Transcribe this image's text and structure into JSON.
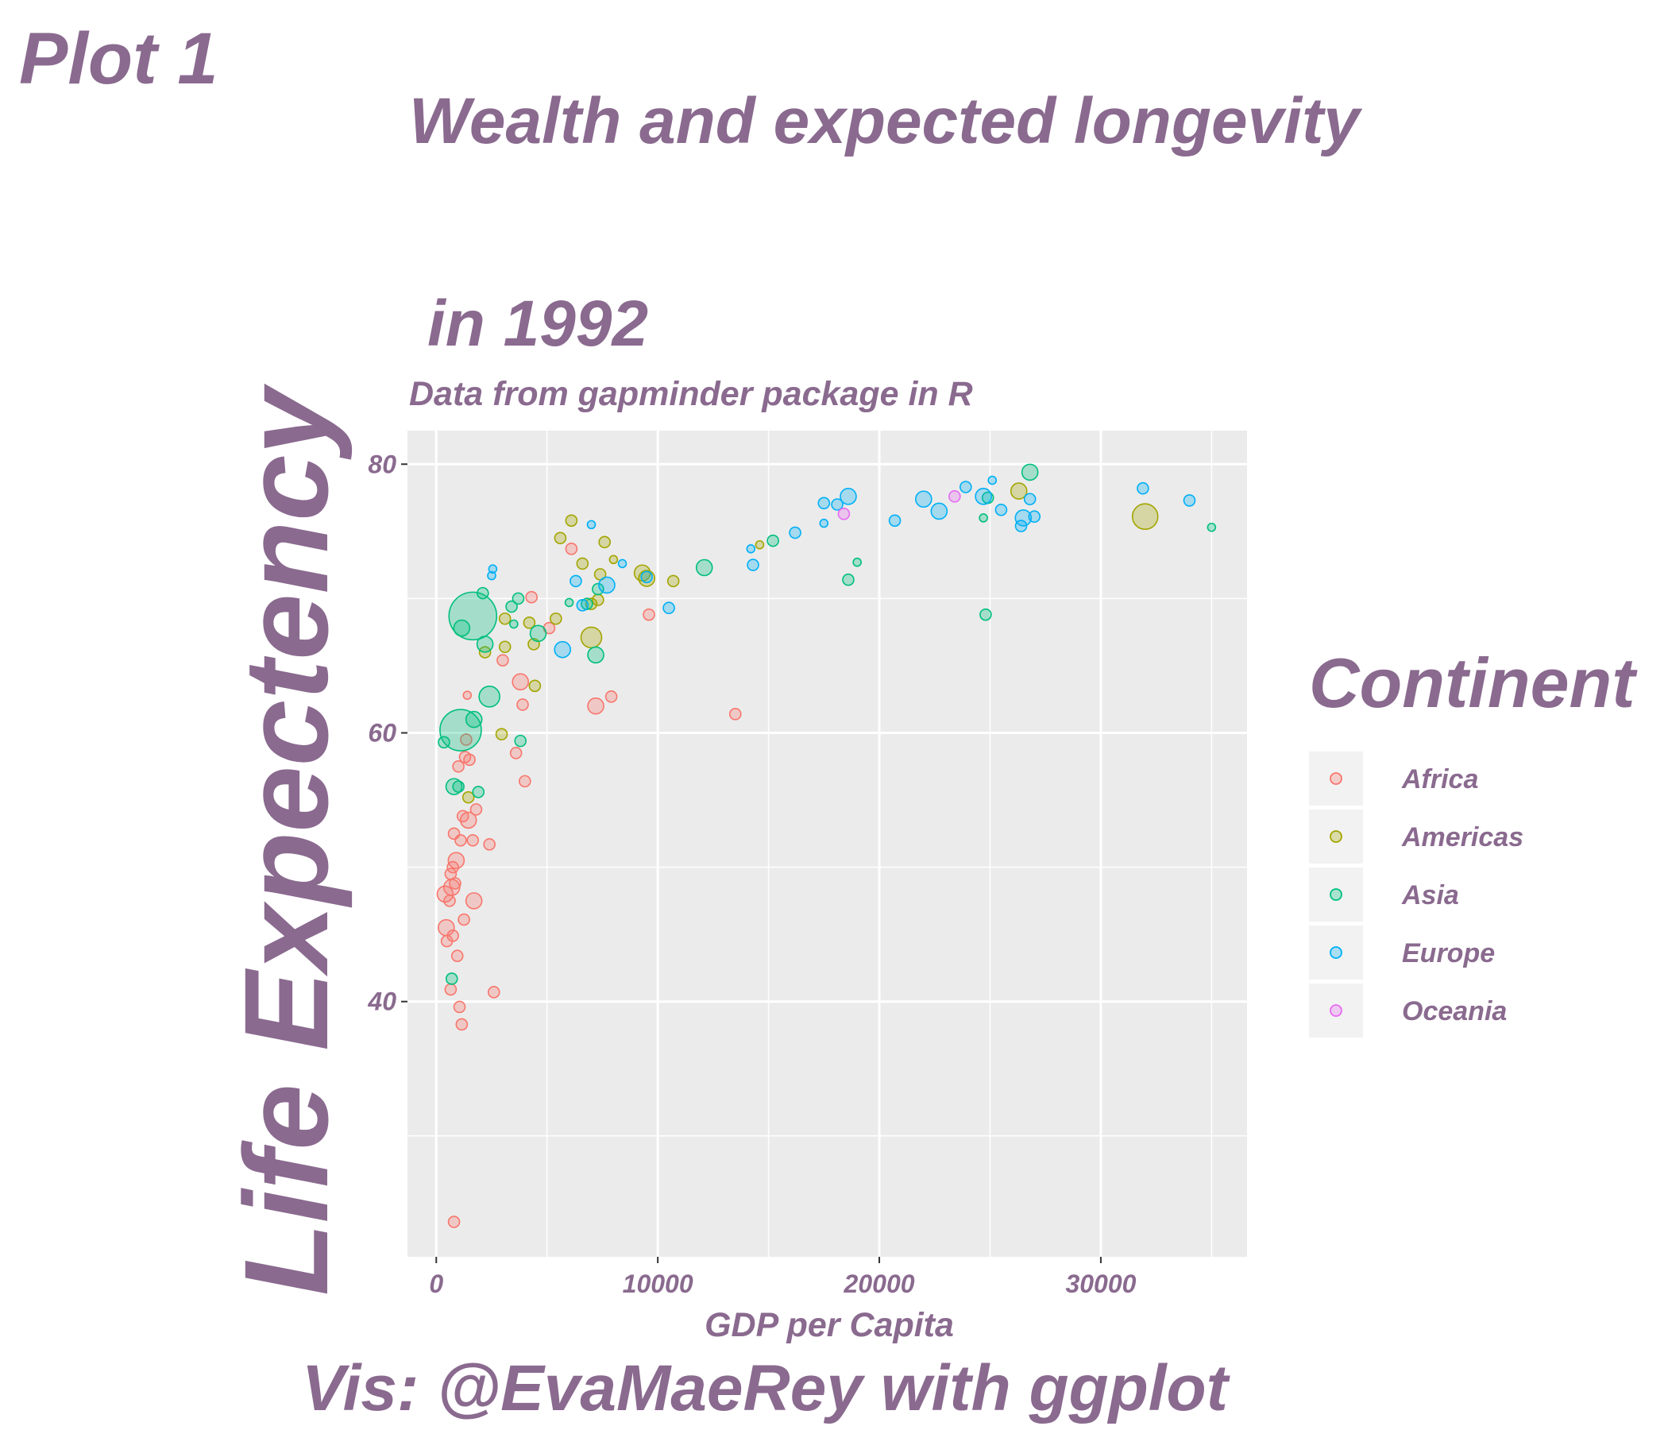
{
  "tag": "Plot 1",
  "caption": "Vis: @EvaMaeRey with ggplot",
  "colors": {
    "text": "#8a6a8f",
    "panel": "#ebebeb",
    "grid": "#ffffff",
    "legend_key": "#f2f2f2",
    "tick_text": "#8a6a8f"
  },
  "chart_data": {
    "type": "scatter",
    "title_lines": [
      "Wealth and expected longevity",
      "in 1992"
    ],
    "subtitle": "Data from gapminder package in R",
    "xlabel": "GDP per Capita",
    "ylabel": "Life Expectency",
    "xlim": [
      -1300,
      36600
    ],
    "ylim": [
      21,
      82.5
    ],
    "xticks": [
      0,
      10000,
      20000,
      30000
    ],
    "yticks": [
      40,
      60,
      80
    ],
    "grid": true,
    "legend": {
      "title": "Continent",
      "position": "right",
      "entries": [
        {
          "name": "Africa",
          "color": "#F8766D"
        },
        {
          "name": "Americas",
          "color": "#A3A500"
        },
        {
          "name": "Asia",
          "color": "#00BF7D"
        },
        {
          "name": "Europe",
          "color": "#00B0F6"
        },
        {
          "name": "Oceania",
          "color": "#E76BF3"
        }
      ]
    },
    "series": [
      {
        "name": "Africa",
        "color": "#F8766D",
        "points": [
          [
            400,
            48.0,
            3
          ],
          [
            450,
            45.5,
            3
          ],
          [
            480,
            44.5,
            2
          ],
          [
            600,
            47.5,
            2
          ],
          [
            650,
            49.5,
            2
          ],
          [
            700,
            48.5,
            3
          ],
          [
            750,
            50.0,
            2
          ],
          [
            800,
            52.5,
            2
          ],
          [
            850,
            48.8,
            2
          ],
          [
            900,
            50.5,
            3
          ],
          [
            950,
            43.4,
            2
          ],
          [
            1000,
            57.5,
            2
          ],
          [
            1050,
            39.6,
            2
          ],
          [
            1100,
            52.0,
            2
          ],
          [
            1150,
            38.3,
            2
          ],
          [
            1200,
            53.8,
            2
          ],
          [
            1250,
            46.1,
            2
          ],
          [
            1300,
            58.2,
            2
          ],
          [
            1350,
            59.5,
            2
          ],
          [
            1400,
            62.8,
            1
          ],
          [
            1450,
            53.5,
            3
          ],
          [
            1500,
            58.0,
            2
          ],
          [
            1650,
            52.0,
            2
          ],
          [
            1700,
            47.5,
            3
          ],
          [
            1800,
            54.3,
            2
          ],
          [
            2400,
            51.7,
            2
          ],
          [
            2600,
            40.7,
            2
          ],
          [
            3000,
            65.4,
            2
          ],
          [
            3600,
            58.5,
            2
          ],
          [
            3800,
            63.8,
            3
          ],
          [
            3900,
            62.1,
            2
          ],
          [
            4000,
            56.4,
            2
          ],
          [
            4300,
            70.1,
            2
          ],
          [
            5100,
            67.8,
            2
          ],
          [
            6100,
            73.7,
            2
          ],
          [
            7200,
            62.0,
            3
          ],
          [
            7900,
            62.7,
            2
          ],
          [
            9600,
            68.8,
            2
          ],
          [
            13500,
            61.4,
            2
          ],
          [
            800,
            23.6,
            2
          ],
          [
            650,
            40.9,
            2
          ],
          [
            750,
            44.9,
            2
          ]
        ]
      },
      {
        "name": "Americas",
        "color": "#A3A500",
        "points": [
          [
            1450,
            55.2,
            2
          ],
          [
            2200,
            66.0,
            2
          ],
          [
            2950,
            59.9,
            2
          ],
          [
            3100,
            68.5,
            2
          ],
          [
            3100,
            66.4,
            2
          ],
          [
            4200,
            68.2,
            2
          ],
          [
            4400,
            66.6,
            2
          ],
          [
            4450,
            63.5,
            2
          ],
          [
            5400,
            68.5,
            2
          ],
          [
            5600,
            74.5,
            2
          ],
          [
            6100,
            75.8,
            2
          ],
          [
            6600,
            72.6,
            2
          ],
          [
            7000,
            67.1,
            4
          ],
          [
            7000,
            69.6,
            2
          ],
          [
            7300,
            69.9,
            2
          ],
          [
            7400,
            71.8,
            2
          ],
          [
            7600,
            74.2,
            2
          ],
          [
            8000,
            72.9,
            1
          ],
          [
            9300,
            71.9,
            3
          ],
          [
            9500,
            71.5,
            3
          ],
          [
            10700,
            71.3,
            2
          ],
          [
            14600,
            74.0,
            1
          ],
          [
            26300,
            78.0,
            3
          ],
          [
            32000,
            76.1,
            5
          ]
        ]
      },
      {
        "name": "Asia",
        "color": "#00BF7D",
        "points": [
          [
            350,
            59.3,
            2
          ],
          [
            700,
            41.7,
            2
          ],
          [
            800,
            56.0,
            3
          ],
          [
            1000,
            56.0,
            2
          ],
          [
            1100,
            60.2,
            6
          ],
          [
            1150,
            67.8,
            3
          ],
          [
            1650,
            68.7,
            8
          ],
          [
            1700,
            61.0,
            3
          ],
          [
            1900,
            55.6,
            2
          ],
          [
            2100,
            70.4,
            2
          ],
          [
            2200,
            66.6,
            3
          ],
          [
            2400,
            62.7,
            4
          ],
          [
            3400,
            69.4,
            2
          ],
          [
            3500,
            68.1,
            1
          ],
          [
            3700,
            70.0,
            2
          ],
          [
            3800,
            59.4,
            2
          ],
          [
            4600,
            67.4,
            3
          ],
          [
            6000,
            69.7,
            1
          ],
          [
            6800,
            69.6,
            2
          ],
          [
            7200,
            65.8,
            3
          ],
          [
            7300,
            70.7,
            2
          ],
          [
            12100,
            72.3,
            3
          ],
          [
            15200,
            74.3,
            2
          ],
          [
            18600,
            71.4,
            2
          ],
          [
            19000,
            72.7,
            1
          ],
          [
            24700,
            76.0,
            1
          ],
          [
            24800,
            68.8,
            2
          ],
          [
            24900,
            77.5,
            2
          ],
          [
            26800,
            79.4,
            3
          ],
          [
            35000,
            75.3,
            1
          ]
        ]
      },
      {
        "name": "Europe",
        "color": "#00B0F6",
        "points": [
          [
            2500,
            71.7,
            1
          ],
          [
            2550,
            72.2,
            1
          ],
          [
            5700,
            66.2,
            3
          ],
          [
            6300,
            71.3,
            2
          ],
          [
            6600,
            69.5,
            2
          ],
          [
            7000,
            75.5,
            1
          ],
          [
            7700,
            71.0,
            3
          ],
          [
            8400,
            72.6,
            1
          ],
          [
            9500,
            71.6,
            2
          ],
          [
            10500,
            69.3,
            2
          ],
          [
            14200,
            73.7,
            1
          ],
          [
            14300,
            72.5,
            2
          ],
          [
            16200,
            74.9,
            2
          ],
          [
            17500,
            77.1,
            2
          ],
          [
            17500,
            75.6,
            1
          ],
          [
            18100,
            77.0,
            2
          ],
          [
            18600,
            77.6,
            3
          ],
          [
            20700,
            75.8,
            2
          ],
          [
            22000,
            77.4,
            3
          ],
          [
            22700,
            76.5,
            3
          ],
          [
            23900,
            78.3,
            2
          ],
          [
            24700,
            77.6,
            3
          ],
          [
            25100,
            78.8,
            1
          ],
          [
            25500,
            76.6,
            2
          ],
          [
            26400,
            75.4,
            2
          ],
          [
            26500,
            76.0,
            3
          ],
          [
            26800,
            77.4,
            2
          ],
          [
            27000,
            76.1,
            2
          ],
          [
            31900,
            78.2,
            2
          ],
          [
            34000,
            77.3,
            2
          ]
        ]
      },
      {
        "name": "Oceania",
        "color": "#E76BF3",
        "points": [
          [
            18400,
            76.3,
            2
          ],
          [
            23400,
            77.6,
            2
          ]
        ]
      }
    ]
  }
}
